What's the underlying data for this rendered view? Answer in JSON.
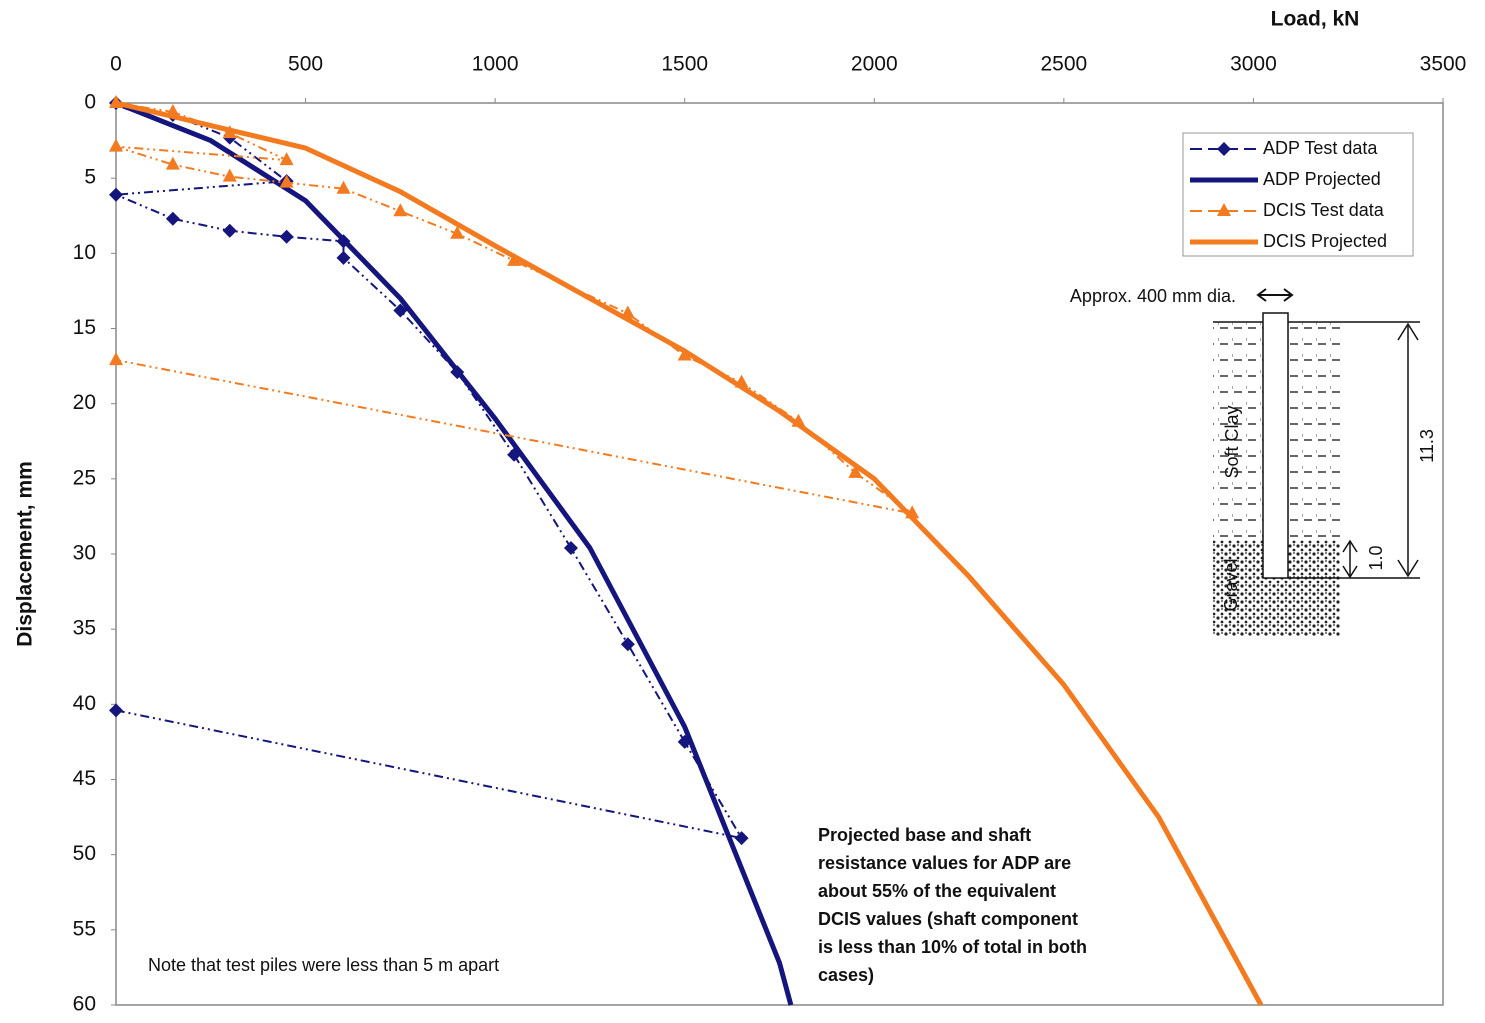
{
  "chart_data": {
    "type": "line",
    "x_label": "Load, kN",
    "y_label": "Displacement, mm",
    "xlim": [
      0,
      3500
    ],
    "xticks": [
      0,
      500,
      1000,
      1500,
      2000,
      2500,
      3000,
      3500
    ],
    "ylim": [
      0,
      60
    ],
    "yticks": [
      0,
      5,
      10,
      15,
      20,
      25,
      30,
      35,
      40,
      45,
      50,
      55,
      60
    ],
    "invert_y": true,
    "x_axis_position": "top",
    "legend_position": "upper right",
    "series": [
      {
        "name": "ADP Test data",
        "color": "#15157e",
        "line_style": "dashdot",
        "line_width": 2,
        "marker": "diamond",
        "x": [
          0,
          150,
          300,
          450,
          0,
          150,
          300,
          450,
          600,
          600,
          750,
          900,
          1050,
          1200,
          1350,
          1500,
          1650,
          0
        ],
        "values": [
          0,
          0.8,
          2.3,
          5.2,
          6.1,
          7.7,
          8.5,
          8.9,
          9.2,
          10.3,
          13.8,
          17.9,
          23.4,
          29.6,
          36,
          42.5,
          48.9,
          40.4
        ]
      },
      {
        "name": "ADP Projected",
        "color": "#15157e",
        "line_style": "solid",
        "line_width": 5,
        "marker": "none",
        "x": [
          0,
          250,
          500,
          750,
          1000,
          1250,
          1500,
          1750,
          1780
        ],
        "values": [
          0,
          2.5,
          6.5,
          13,
          21,
          29.6,
          41.5,
          57.2,
          60
        ]
      },
      {
        "name": "DCIS Test data",
        "color": "#f47a1f",
        "line_style": "dashdot",
        "line_width": 2,
        "marker": "triangle",
        "x": [
          0,
          150,
          300,
          450,
          0,
          150,
          300,
          450,
          600,
          750,
          900,
          1050,
          1350,
          1500,
          1650,
          1800,
          1950,
          2100,
          0
        ],
        "values": [
          0,
          0.6,
          2,
          3.8,
          2.9,
          4.1,
          4.9,
          5.3,
          5.7,
          7.2,
          8.7,
          10.5,
          14,
          16.8,
          18.6,
          21.2,
          24.6,
          27.3,
          17.1
        ]
      },
      {
        "name": "DCIS Projected",
        "color": "#f47a1f",
        "line_style": "solid",
        "line_width": 5,
        "marker": "none",
        "x": [
          0,
          250,
          500,
          750,
          1000,
          1250,
          1500,
          1750,
          2000,
          2250,
          2500,
          2750,
          3020
        ],
        "values": [
          0,
          1.5,
          3,
          5.9,
          9.5,
          13,
          16.5,
          20.5,
          25,
          31.5,
          38.7,
          47.5,
          60
        ]
      }
    ],
    "annotations": {
      "note": "Note that test piles were less than 5 m apart",
      "conclusion": [
        "Projected base and shaft",
        "resistance values for ADP are",
        "about 55% of the equivalent",
        "DCIS values (shaft component",
        "is less than 10% of total in both",
        "cases)"
      ],
      "diameter": "Approx. 400 mm dia.",
      "soft_clay": "Soft Clay",
      "gravel": "Gravel",
      "pile_length": "11.3",
      "gravel_embedment": "1.0"
    }
  }
}
